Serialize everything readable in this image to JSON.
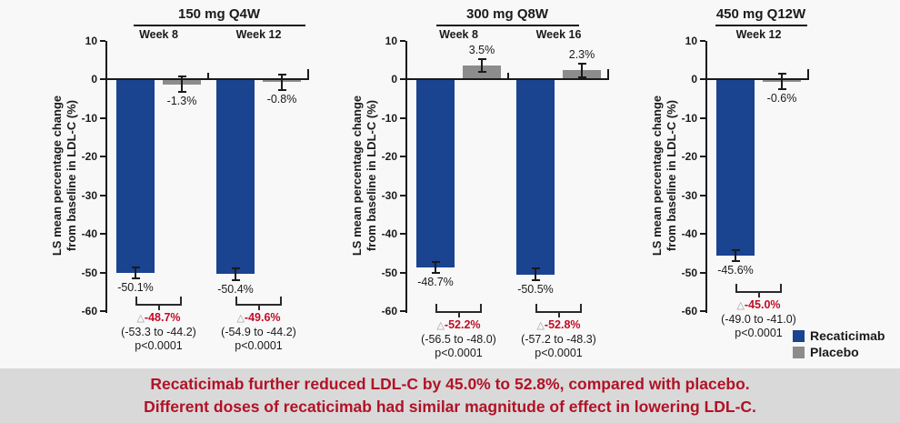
{
  "y_axis": {
    "title_lines": [
      "LS mean percentage change",
      "from baseline in LDL-C (%)"
    ],
    "ticks": [
      10,
      0,
      -10,
      -20,
      -30,
      -40,
      -50,
      -60
    ]
  },
  "legend": {
    "items": [
      {
        "label": "Recaticimab",
        "color": "#1a4390"
      },
      {
        "label": "Placebo",
        "color": "#8c8c8c"
      }
    ]
  },
  "banner": {
    "lines": [
      "Recaticimab further reduced LDL-C by 45.0% to 52.8%, compared with placebo.",
      "Different doses of recaticimab had similar magnitude of effect in lowering LDL-C."
    ],
    "text_color": "#b11226",
    "bg_color": "#d9d9d9"
  },
  "colors": {
    "recaticimab": "#1a4390",
    "placebo": "#8c8c8c",
    "delta_red": "#c00c26",
    "axis": "#1a1a1a",
    "background": "#f8f8f8"
  },
  "chart_data": [
    {
      "type": "bar",
      "title": "150 mg Q4W",
      "ylabel": "LS mean percentage change from baseline in LDL-C (%)",
      "ylim": [
        -60,
        10
      ],
      "yticks": [
        10,
        0,
        -10,
        -20,
        -30,
        -40,
        -50,
        -60
      ],
      "series_names": [
        "Recaticimab",
        "Placebo"
      ],
      "groups": [
        {
          "week": "Week 8",
          "recaticimab": {
            "value": -50.1,
            "label": "-50.1%",
            "error": 1.5
          },
          "placebo": {
            "value": -1.3,
            "label": "-1.3%",
            "error": 2.0
          },
          "difference": {
            "marker": "△",
            "label": "-48.7%",
            "ci": "(-53.3 to -44.2)",
            "p_value": "p<0.0001"
          }
        },
        {
          "week": "Week 12",
          "recaticimab": {
            "value": -50.4,
            "label": "-50.4%",
            "error": 1.5
          },
          "placebo": {
            "value": -0.8,
            "label": "-0.8%",
            "error": 2.0
          },
          "difference": {
            "marker": "△",
            "label": "-49.6%",
            "ci": "(-54.9 to -44.2)",
            "p_value": "p<0.0001"
          }
        }
      ]
    },
    {
      "type": "bar",
      "title": "300 mg Q8W",
      "ylabel": "LS mean percentage change from baseline in LDL-C (%)",
      "ylim": [
        -60,
        10
      ],
      "yticks": [
        10,
        0,
        -10,
        -20,
        -30,
        -40,
        -50,
        -60
      ],
      "series_names": [
        "Recaticimab",
        "Placebo"
      ],
      "groups": [
        {
          "week": "Week 8",
          "recaticimab": {
            "value": -48.7,
            "label": "-48.7%",
            "error": 1.4
          },
          "placebo": {
            "value": 3.5,
            "label": "3.5%",
            "error": 1.7
          },
          "difference": {
            "marker": "△",
            "label": "-52.2%",
            "ci": "(-56.5 to -48.0)",
            "p_value": "p<0.0001"
          }
        },
        {
          "week": "Week 16",
          "recaticimab": {
            "value": -50.5,
            "label": "-50.5%",
            "error": 1.5
          },
          "placebo": {
            "value": 2.3,
            "label": "2.3%",
            "error": 1.8
          },
          "difference": {
            "marker": "△",
            "label": "-52.8%",
            "ci": "(-57.2 to -48.3)",
            "p_value": "p<0.0001"
          }
        }
      ]
    },
    {
      "type": "bar",
      "title": "450 mg Q12W",
      "ylabel": "LS mean percentage change from baseline in LDL-C (%)",
      "ylim": [
        -60,
        10
      ],
      "yticks": [
        10,
        0,
        -10,
        -20,
        -30,
        -40,
        -50,
        -60
      ],
      "series_names": [
        "Recaticimab",
        "Placebo"
      ],
      "groups": [
        {
          "week": "Week 12",
          "recaticimab": {
            "value": -45.6,
            "label": "-45.6%",
            "error": 1.4
          },
          "placebo": {
            "value": -0.6,
            "label": "-0.6%",
            "error": 2.0
          },
          "difference": {
            "marker": "△",
            "label": "-45.0%",
            "ci": "(-49.0 to -41.0)",
            "p_value": "p<0.0001"
          }
        }
      ]
    }
  ]
}
